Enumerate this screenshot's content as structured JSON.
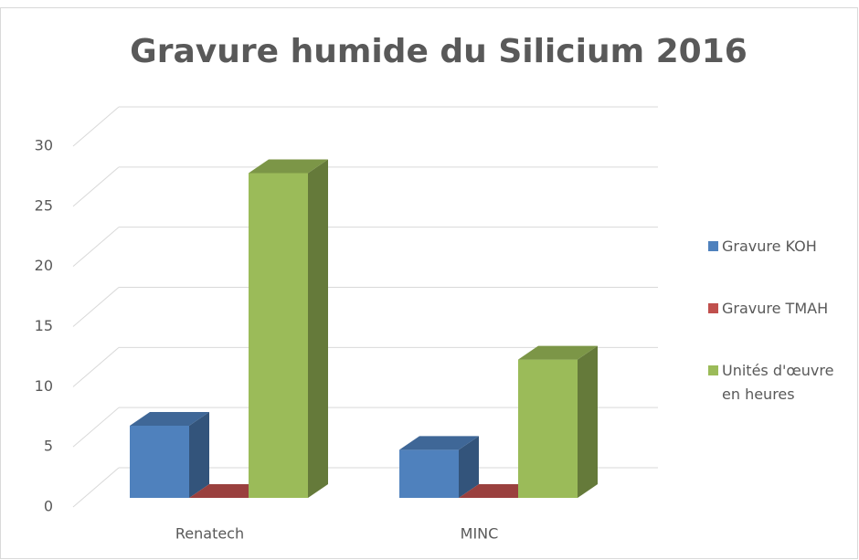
{
  "chart_data": {
    "type": "bar3d",
    "title": "Gravure humide du Silicium 2016",
    "categories": [
      "Renatech",
      "MINC"
    ],
    "series": [
      {
        "name": "Gravure KOH",
        "color": "#4f81bd",
        "values": [
          6,
          4
        ]
      },
      {
        "name": "Gravure TMAH",
        "color": "#c0504d",
        "values": [
          0,
          0
        ]
      },
      {
        "name": "Unités d'œuvre en heures",
        "color": "#9bbb59",
        "values": [
          27,
          11.5
        ]
      }
    ],
    "ylim": [
      0,
      30
    ],
    "yticks": [
      0,
      5,
      10,
      15,
      20,
      25,
      30
    ],
    "grid": true,
    "legend": "right"
  }
}
